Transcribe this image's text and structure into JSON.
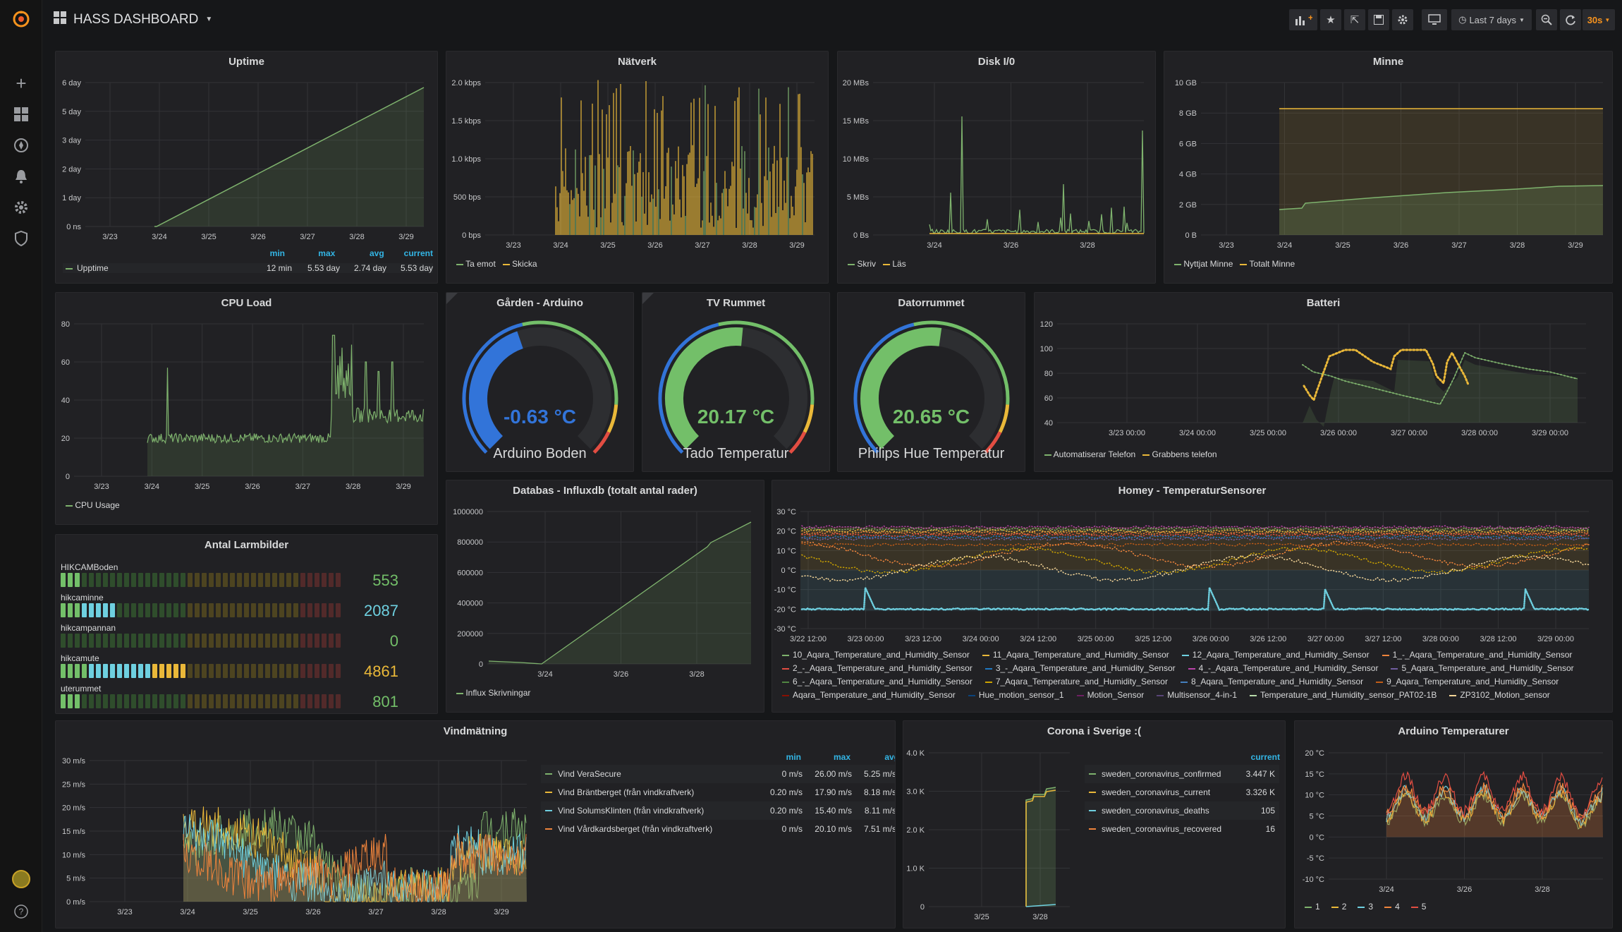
{
  "header": {
    "title": "HASS DASHBOARD",
    "time_range": "Last 7 days",
    "refresh": "30s"
  },
  "colors": {
    "green": "#7eb26d",
    "yellow": "#eab839",
    "cyan": "#6ed0e0",
    "orange": "#ef843c",
    "red": "#e24d42",
    "blue": "#1f78c1",
    "purple": "#ba43a9",
    "accent": "#f7931e"
  },
  "panels": {
    "uptime": {
      "title": "Uptime",
      "y_ticks": [
        "6 day",
        "5 day",
        "3 day",
        "2 day",
        "1 day",
        "0 ns"
      ],
      "x_ticks": [
        "3/23",
        "3/24",
        "3/25",
        "3/26",
        "3/27",
        "3/28",
        "3/29"
      ],
      "legend_headers": [
        "min",
        "max",
        "avg",
        "current"
      ],
      "legend": [
        {
          "name": "Upptime",
          "min": "12 min",
          "max": "5.53 day",
          "avg": "2.74 day",
          "current": "5.53 day"
        }
      ]
    },
    "network": {
      "title": "Nätverk",
      "y_ticks": [
        "2.0 kbps",
        "1.5 kbps",
        "1.0 kbps",
        "500 bps",
        "0 bps"
      ],
      "x_ticks": [
        "3/23",
        "3/24",
        "3/25",
        "3/26",
        "3/27",
        "3/28",
        "3/29"
      ],
      "legend": [
        "Ta emot",
        "Skicka"
      ]
    },
    "disk": {
      "title": "Disk I/0",
      "y_ticks": [
        "20 MBs",
        "15 MBs",
        "10 MBs",
        "5 MBs",
        "0 Bs"
      ],
      "x_ticks": [
        "3/24",
        "3/26",
        "3/28"
      ],
      "legend": [
        "Skriv",
        "Läs"
      ]
    },
    "memory": {
      "title": "Minne",
      "y_ticks": [
        "10 GB",
        "8 GB",
        "6 GB",
        "4 GB",
        "2 GB",
        "0 B"
      ],
      "x_ticks": [
        "3/23",
        "3/24",
        "3/25",
        "3/26",
        "3/27",
        "3/28",
        "3/29"
      ],
      "legend": [
        "Nyttjat Minne",
        "Totalt Minne"
      ]
    },
    "cpu": {
      "title": "CPU Load",
      "y_ticks": [
        "80",
        "60",
        "40",
        "20",
        "0"
      ],
      "x_ticks": [
        "3/23",
        "3/24",
        "3/25",
        "3/26",
        "3/27",
        "3/28",
        "3/29"
      ],
      "legend": [
        "CPU Usage"
      ]
    },
    "gauges": [
      {
        "title": "Gården - Arduino",
        "value": "-0.63 °C",
        "label": "Arduino Boden",
        "color": "#3274d9",
        "fraction": 0.43
      },
      {
        "title": "TV Rummet",
        "value": "20.17 °C",
        "label": "Tado Temperatur",
        "color": "#73bf69",
        "fraction": 0.52
      },
      {
        "title": "Datorrummet",
        "value": "20.65 °C",
        "label": "Philips Hue Temperatur",
        "color": "#73bf69",
        "fraction": 0.53
      }
    ],
    "battery": {
      "title": "Batteri",
      "y_ticks": [
        "120",
        "100",
        "80",
        "60",
        "40"
      ],
      "x_ticks": [
        "3/23 00:00",
        "3/24 00:00",
        "3/25 00:00",
        "3/26 00:00",
        "3/27 00:00",
        "3/28 00:00",
        "3/29 00:00"
      ],
      "legend": [
        "Automatiserar Telefon",
        "Grabbens telefon"
      ]
    },
    "alarms": {
      "title": "Antal Larmbilder",
      "rows": [
        {
          "name": "HIKCAMBoden",
          "value": "553",
          "lit": 3,
          "color": "#73bf69"
        },
        {
          "name": "hikcaminne",
          "value": "2087",
          "lit": 8,
          "color": "#6ed0e0"
        },
        {
          "name": "hikcampannan",
          "value": "0",
          "lit": 0,
          "color": "#73bf69"
        },
        {
          "name": "hikcamute",
          "value": "4861",
          "lit": 18,
          "color": "#eab839"
        },
        {
          "name": "uterummet",
          "value": "801",
          "lit": 3,
          "color": "#73bf69"
        }
      ]
    },
    "influx": {
      "title": "Databas - Influxdb (totalt antal rader)",
      "y_ticks": [
        "1000000",
        "800000",
        "600000",
        "400000",
        "200000",
        "0"
      ],
      "x_ticks": [
        "3/24",
        "3/26",
        "3/28"
      ],
      "legend": [
        "Influx Skrivningar"
      ]
    },
    "homey": {
      "title": "Homey - TemperaturSensorer",
      "y_ticks": [
        "30 °C",
        "20 °C",
        "10 °C",
        "0 °C",
        "-10 °C",
        "-20 °C",
        "-30 °C"
      ],
      "x_ticks": [
        "3/22 12:00",
        "3/23 00:00",
        "3/23 12:00",
        "3/24 00:00",
        "3/24 12:00",
        "3/25 00:00",
        "3/25 12:00",
        "3/26 00:00",
        "3/26 12:00",
        "3/27 00:00",
        "3/27 12:00",
        "3/28 00:00",
        "3/28 12:00",
        "3/29 00:00"
      ],
      "legend": [
        {
          "name": "10_Aqara_Temperature_and_Humidity_Sensor",
          "color": "#7eb26d"
        },
        {
          "name": "11_Aqara_Temperature_and_Humidity_Sensor",
          "color": "#eab839"
        },
        {
          "name": "12_Aqara_Temperature_and_Humidity_Sensor",
          "color": "#6ed0e0"
        },
        {
          "name": "1_-_Aqara_Temperature_and_Humidity_Sensor",
          "color": "#ef843c"
        },
        {
          "name": "2_-_Aqara_Temperature_and_Humidity_Sensor",
          "color": "#e24d42"
        },
        {
          "name": "3_-_Aqara_Temperature_and_Humidity_Sensor",
          "color": "#1f78c1"
        },
        {
          "name": "4_-_Aqara_Temperature_and_Humidity_Sensor",
          "color": "#ba43a9"
        },
        {
          "name": "5_Aqara_Temperature_and_Humidity_Sensor",
          "color": "#705da0"
        },
        {
          "name": "6_-_Aqara_Temperature_and_Humidity_Sensor",
          "color": "#508642"
        },
        {
          "name": "7_Aqara_Temperature_and_Humidity_Sensor",
          "color": "#cca300"
        },
        {
          "name": "8_Aqara_Temperature_and_Humidity_Sensor",
          "color": "#447ebc"
        },
        {
          "name": "9_Aqara_Temperature_and_Humidity_Sensor",
          "color": "#c15c17"
        },
        {
          "name": "Aqara_Temperature_and_Humidity_Sensor",
          "color": "#890f02"
        },
        {
          "name": "Hue_motion_sensor_1",
          "color": "#0a437c"
        },
        {
          "name": "Motion_Sensor",
          "color": "#6d1f62"
        },
        {
          "name": "Multisensor_4-in-1",
          "color": "#584477"
        },
        {
          "name": "Temperature_and_Humidity_sensor_PAT02-1B",
          "color": "#b7dbab"
        },
        {
          "name": "ZP3102_Motion_sensor",
          "color": "#f4d598"
        }
      ]
    },
    "wind": {
      "title": "Vindmätning",
      "y_ticks": [
        "30 m/s",
        "25 m/s",
        "20 m/s",
        "15 m/s",
        "10 m/s",
        "5 m/s",
        "0 m/s"
      ],
      "x_ticks": [
        "3/23",
        "3/24",
        "3/25",
        "3/26",
        "3/27",
        "3/28",
        "3/29"
      ],
      "legend_headers": [
        "min",
        "max",
        "avg"
      ],
      "legend": [
        {
          "name": "Vind VeraSecure",
          "min": "0 m/s",
          "max": "26.00 m/s",
          "avg": "5.25 m/s",
          "color": "#7eb26d"
        },
        {
          "name": "Vind Bräntberget (från vindkraftverk)",
          "min": "0.20 m/s",
          "max": "17.90 m/s",
          "avg": "8.18 m/s",
          "color": "#eab839"
        },
        {
          "name": "Vind SolumsKlinten (från vindkraftverk)",
          "min": "0.20 m/s",
          "max": "15.40 m/s",
          "avg": "8.11 m/s",
          "color": "#6ed0e0"
        },
        {
          "name": "Vind Vårdkardsberget (från vindkraftverk)",
          "min": "0 m/s",
          "max": "20.10 m/s",
          "avg": "7.51 m/s",
          "color": "#ef843c"
        }
      ]
    },
    "corona": {
      "title": "Corona i Sverige :(",
      "y_ticks": [
        "4.0 K",
        "3.0 K",
        "2.0 K",
        "1.0 K",
        "0"
      ],
      "x_ticks": [
        "3/25",
        "3/28"
      ],
      "legend_header": "current",
      "legend": [
        {
          "name": "sweden_coronavirus_confirmed",
          "current": "3.447 K",
          "color": "#7eb26d"
        },
        {
          "name": "sweden_coronavirus_current",
          "current": "3.326 K",
          "color": "#eab839"
        },
        {
          "name": "sweden_coronavirus_deaths",
          "current": "105",
          "color": "#6ed0e0"
        },
        {
          "name": "sweden_coronavirus_recovered",
          "current": "16",
          "color": "#ef843c"
        }
      ]
    },
    "arduino": {
      "title": "Arduino Temperaturer",
      "y_ticks": [
        "20 °C",
        "15 °C",
        "10 °C",
        "5 °C",
        "0 °C",
        "-5 °C",
        "-10 °C"
      ],
      "x_ticks": [
        "3/24",
        "3/26",
        "3/28"
      ],
      "legend": [
        {
          "name": "1",
          "color": "#7eb26d"
        },
        {
          "name": "2",
          "color": "#eab839"
        },
        {
          "name": "3",
          "color": "#6ed0e0"
        },
        {
          "name": "4",
          "color": "#ef843c"
        },
        {
          "name": "5",
          "color": "#e24d42"
        }
      ]
    }
  }
}
